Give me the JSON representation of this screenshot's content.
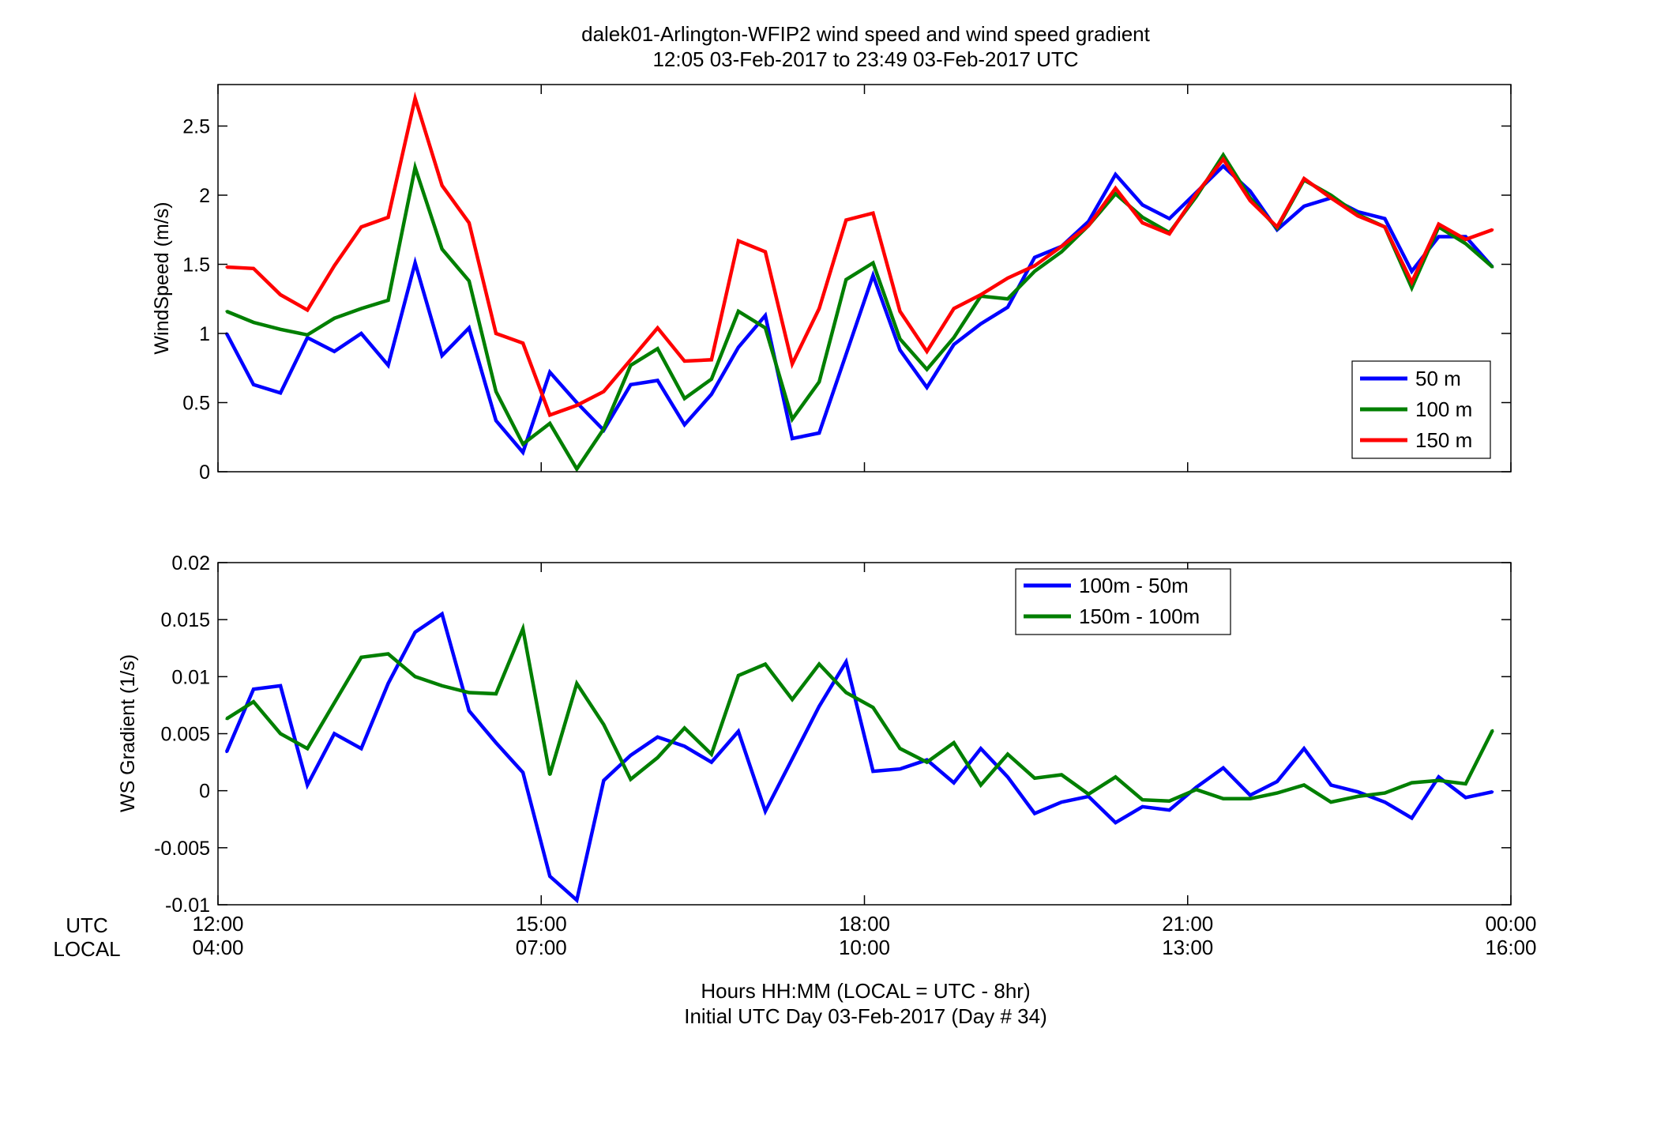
{
  "figure": {
    "title_line1": "dalek01-Arlington-WFIP2  wind speed and wind speed gradient",
    "title_line2": "12:05 03-Feb-2017 to 23:49 03-Feb-2017  UTC",
    "xlabel_line1": "Hours HH:MM  (LOCAL = UTC - 8hr)",
    "xlabel_line2": "Initial UTC Day 03-Feb-2017 (Day # 34)",
    "row_label_utc": "UTC",
    "row_label_local": "LOCAL"
  },
  "colors": {
    "blue": "#0000ff",
    "green": "#007f00",
    "red": "#ff0000"
  },
  "chart_data": [
    {
      "type": "line",
      "title": "",
      "ylabel": "WindSpeed (m/s)",
      "xlim": [
        12,
        24
      ],
      "ylim": [
        0,
        2.8
      ],
      "yticks": [
        0,
        0.5,
        1,
        1.5,
        2,
        2.5
      ],
      "ytick_labels": [
        "0",
        "0.5",
        "1",
        "1.5",
        "2",
        "2.5"
      ],
      "x_ticks": [
        12,
        15,
        18,
        21,
        24
      ],
      "x_tick_labels_utc": [
        "12:00",
        "15:00",
        "18:00",
        "21:00",
        "00:00"
      ],
      "x_tick_labels_local": [
        "04:00",
        "07:00",
        "10:00",
        "13:00",
        "16:00"
      ],
      "grid": false,
      "legend_position": "bottom-right",
      "x": [
        12.08,
        12.33,
        12.58,
        12.83,
        13.08,
        13.33,
        13.58,
        13.83,
        14.08,
        14.33,
        14.58,
        14.83,
        15.08,
        15.33,
        15.58,
        15.83,
        16.08,
        16.33,
        16.58,
        16.83,
        17.08,
        17.33,
        17.58,
        17.83,
        18.08,
        18.33,
        18.58,
        18.83,
        19.08,
        19.33,
        19.58,
        19.83,
        20.08,
        20.33,
        20.58,
        20.83,
        21.08,
        21.33,
        21.58,
        21.83,
        22.08,
        22.33,
        22.58,
        22.83,
        23.08,
        23.33,
        23.58,
        23.83
      ],
      "series": [
        {
          "name": "50 m",
          "color": "#0000ff",
          "values": [
            1.0,
            0.63,
            0.57,
            0.97,
            0.87,
            1.0,
            0.77,
            1.51,
            0.84,
            1.04,
            0.37,
            0.14,
            0.72,
            0.5,
            0.3,
            0.63,
            0.66,
            0.34,
            0.56,
            0.9,
            1.13,
            0.24,
            0.28,
            0.85,
            1.42,
            0.88,
            0.61,
            0.92,
            1.07,
            1.19,
            1.55,
            1.63,
            1.81,
            2.15,
            1.93,
            1.83,
            2.02,
            2.21,
            2.03,
            1.75,
            1.92,
            1.98,
            1.88,
            1.83,
            1.45,
            1.7,
            1.7,
            1.48
          ]
        },
        {
          "name": "100 m",
          "color": "#007f00",
          "values": [
            1.16,
            1.08,
            1.03,
            0.99,
            1.11,
            1.18,
            1.24,
            2.2,
            1.61,
            1.38,
            0.58,
            0.2,
            0.35,
            0.02,
            0.31,
            0.77,
            0.89,
            0.53,
            0.67,
            1.16,
            1.04,
            0.38,
            0.65,
            1.39,
            1.51,
            0.96,
            0.74,
            0.97,
            1.27,
            1.25,
            1.45,
            1.59,
            1.78,
            2.01,
            1.84,
            1.73,
            1.99,
            2.29,
            1.98,
            1.76,
            2.11,
            2.0,
            1.86,
            1.77,
            1.33,
            1.77,
            1.65,
            1.48
          ]
        },
        {
          "name": "150 m",
          "color": "#ff0000",
          "values": [
            1.48,
            1.47,
            1.28,
            1.17,
            1.49,
            1.77,
            1.84,
            2.7,
            2.07,
            1.8,
            1.0,
            0.93,
            0.41,
            0.48,
            0.58,
            0.81,
            1.04,
            0.8,
            0.81,
            1.67,
            1.59,
            0.78,
            1.18,
            1.82,
            1.87,
            1.16,
            0.87,
            1.18,
            1.28,
            1.4,
            1.49,
            1.63,
            1.78,
            2.05,
            1.8,
            1.72,
            2.01,
            2.26,
            1.96,
            1.77,
            2.12,
            1.98,
            1.85,
            1.77,
            1.37,
            1.79,
            1.68,
            1.75
          ]
        }
      ]
    },
    {
      "type": "line",
      "title": "",
      "ylabel": "WS Gradient (1/s)",
      "xlim": [
        12,
        24
      ],
      "ylim": [
        -0.01,
        0.02
      ],
      "yticks": [
        -0.01,
        -0.005,
        0,
        0.005,
        0.01,
        0.015,
        0.02
      ],
      "ytick_labels": [
        "-0.01",
        "-0.005",
        "0",
        "0.005",
        "0.01",
        "0.015",
        "0.02"
      ],
      "grid": false,
      "legend_position": "top-center",
      "x": [
        12.08,
        12.33,
        12.58,
        12.83,
        13.08,
        13.33,
        13.58,
        13.83,
        14.08,
        14.33,
        14.58,
        14.83,
        15.08,
        15.33,
        15.58,
        15.83,
        16.08,
        16.33,
        16.58,
        16.83,
        17.08,
        17.33,
        17.58,
        17.83,
        18.08,
        18.33,
        18.58,
        18.83,
        19.08,
        19.33,
        19.58,
        19.83,
        20.08,
        20.33,
        20.58,
        20.83,
        21.08,
        21.33,
        21.58,
        21.83,
        22.08,
        22.33,
        22.58,
        22.83,
        23.08,
        23.33,
        23.58,
        23.83
      ],
      "series": [
        {
          "name": "100m - 50m",
          "color": "#0000ff",
          "values": [
            0.0034,
            0.0089,
            0.0092,
            0.0005,
            0.005,
            0.0037,
            0.0094,
            0.0139,
            0.0155,
            0.007,
            0.0042,
            0.0016,
            -0.0075,
            -0.0096,
            0.0009,
            0.0031,
            0.0047,
            0.0039,
            0.0025,
            0.0052,
            -0.0018,
            0.0028,
            0.0074,
            0.0113,
            0.0017,
            0.0019,
            0.0027,
            0.0007,
            0.0037,
            0.0012,
            -0.002,
            -0.001,
            -0.0005,
            -0.0028,
            -0.0014,
            -0.0017,
            0.0003,
            0.002,
            -0.0004,
            0.0008,
            0.0037,
            0.0005,
            -0.0001,
            -0.001,
            -0.0024,
            0.0012,
            -0.0006,
            -0.0001
          ]
        },
        {
          "name": "150m - 100m",
          "color": "#007f00",
          "values": [
            0.0063,
            0.0078,
            0.005,
            0.0037,
            0.0077,
            0.0117,
            0.012,
            0.01,
            0.0092,
            0.0086,
            0.0085,
            0.0142,
            0.0014,
            0.0094,
            0.0058,
            0.001,
            0.0029,
            0.0055,
            0.0032,
            0.0101,
            0.0111,
            0.008,
            0.0111,
            0.0086,
            0.0073,
            0.0037,
            0.0025,
            0.0042,
            0.0005,
            0.0032,
            0.0011,
            0.0014,
            -0.0003,
            0.0012,
            -0.0008,
            -0.0009,
            0.0001,
            -0.0007,
            -0.0007,
            -0.0002,
            0.0005,
            -0.001,
            -0.0005,
            -0.0002,
            0.0007,
            0.0009,
            0.0006,
            0.0053
          ]
        }
      ]
    }
  ]
}
